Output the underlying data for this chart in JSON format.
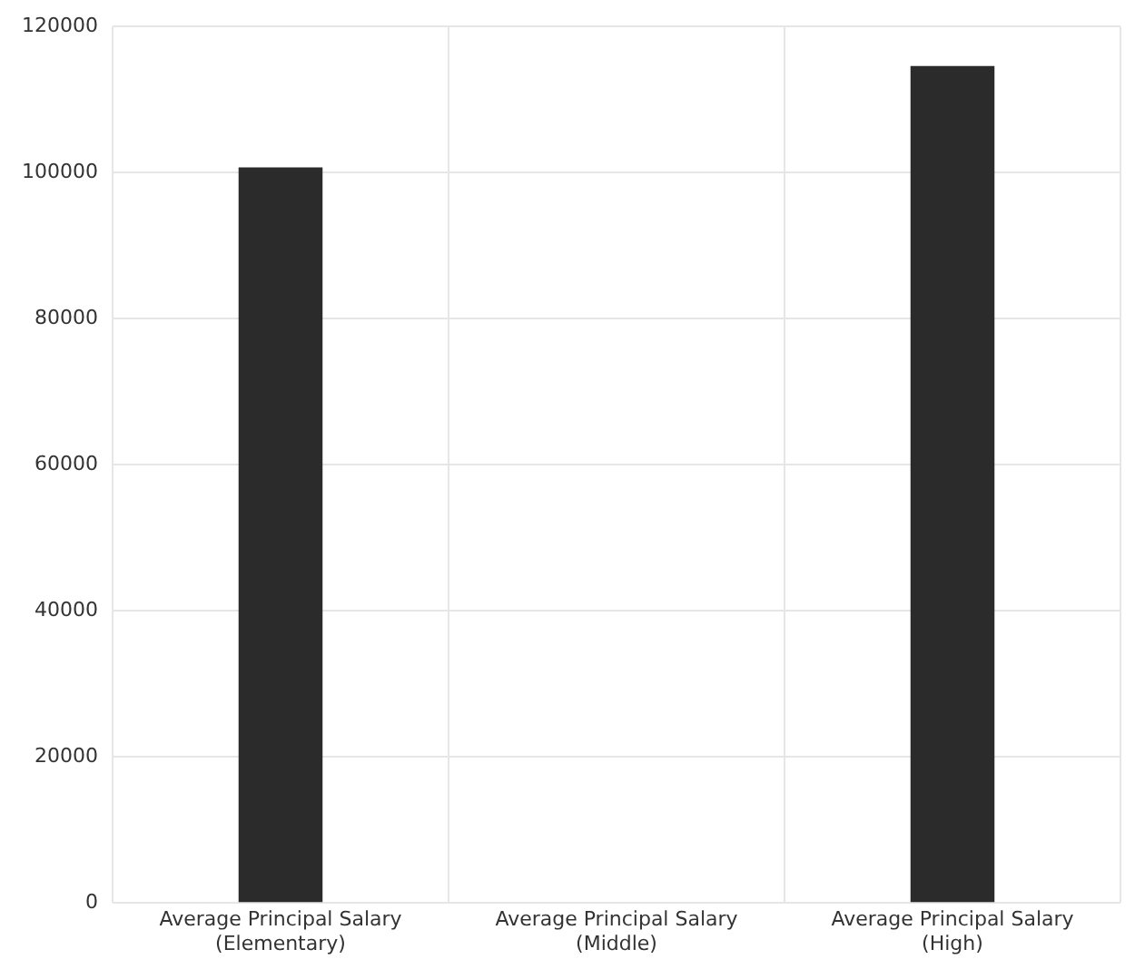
{
  "chart_data": {
    "type": "bar",
    "categories": [
      "Average Principal Salary (Elementary)",
      "Average Principal Salary (Middle)",
      "Average Principal Salary (High)"
    ],
    "values": [
      100700,
      null,
      114600
    ],
    "color": "#2b2b2b",
    "ylim": [
      0,
      120000
    ],
    "yticks": [
      0,
      20000,
      40000,
      60000,
      80000,
      100000,
      120000
    ],
    "grid": true
  }
}
